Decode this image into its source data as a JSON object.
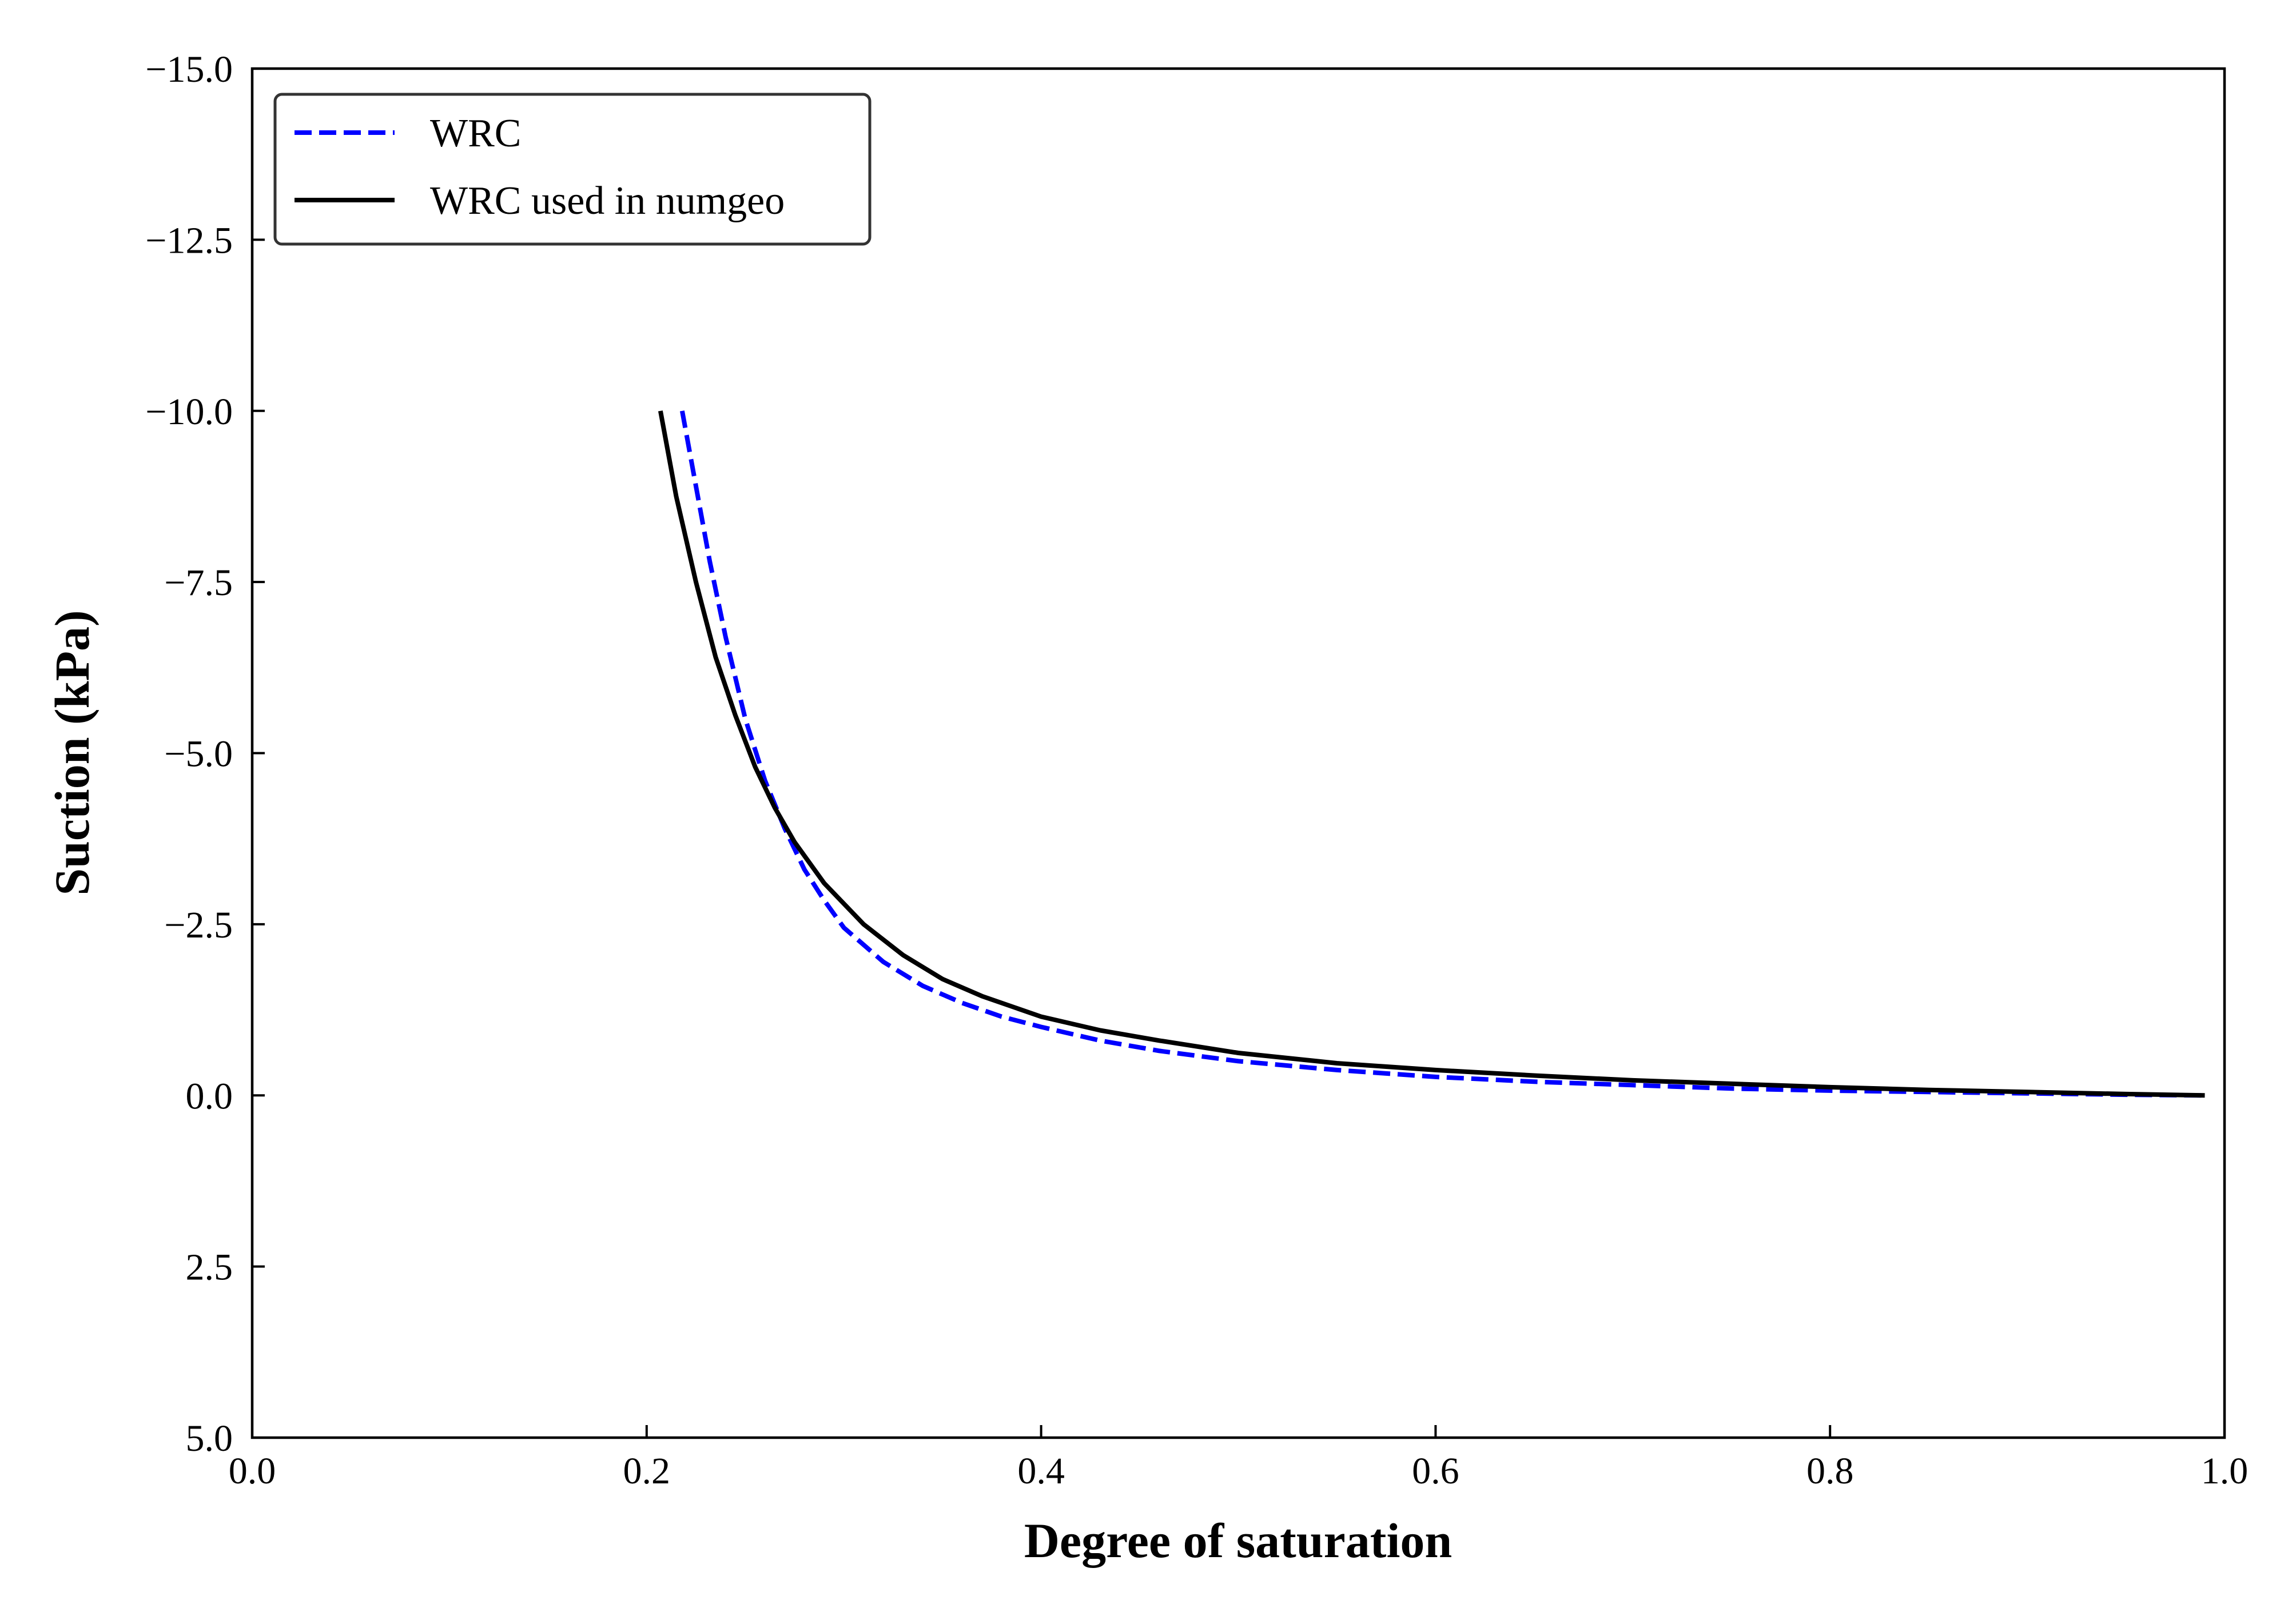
{
  "chart_data": {
    "type": "line",
    "title": "",
    "xlabel": "Degree of saturation",
    "ylabel": "Suction (kPa)",
    "xlim": [
      0.0,
      1.0
    ],
    "ylim": [
      -15.0,
      5.0
    ],
    "y_inverted": true,
    "grid": false,
    "legend_position": "top-left",
    "xticks": [
      {
        "value": 0.0,
        "label": "0.0"
      },
      {
        "value": 0.2,
        "label": "0.2"
      },
      {
        "value": 0.4,
        "label": "0.4"
      },
      {
        "value": 0.6,
        "label": "0.6"
      },
      {
        "value": 0.8,
        "label": "0.8"
      },
      {
        "value": 1.0,
        "label": "1.0"
      }
    ],
    "yticks": [
      {
        "value": -15.0,
        "label": "−15.0"
      },
      {
        "value": -12.5,
        "label": "−12.5"
      },
      {
        "value": -10.0,
        "label": "−10.0"
      },
      {
        "value": -7.5,
        "label": "−7.5"
      },
      {
        "value": -5.0,
        "label": "−5.0"
      },
      {
        "value": -2.5,
        "label": "−2.5"
      },
      {
        "value": 0.0,
        "label": "0.0"
      },
      {
        "value": 2.5,
        "label": "2.5"
      },
      {
        "value": 5.0,
        "label": "5.0"
      }
    ],
    "series": [
      {
        "name": "WRC",
        "color": "#0000ff",
        "style": "dashed",
        "x": [
          0.218,
          0.225,
          0.232,
          0.24,
          0.25,
          0.26,
          0.27,
          0.28,
          0.29,
          0.3,
          0.32,
          0.34,
          0.36,
          0.38,
          0.4,
          0.43,
          0.46,
          0.5,
          0.55,
          0.6,
          0.65,
          0.7,
          0.75,
          0.8,
          0.85,
          0.9,
          0.95,
          0.99
        ],
        "y": [
          -10.0,
          -8.9,
          -7.8,
          -6.7,
          -5.5,
          -4.6,
          -3.9,
          -3.3,
          -2.85,
          -2.45,
          -1.95,
          -1.6,
          -1.35,
          -1.15,
          -1.0,
          -0.8,
          -0.65,
          -0.5,
          -0.37,
          -0.27,
          -0.2,
          -0.15,
          -0.1,
          -0.07,
          -0.05,
          -0.03,
          -0.01,
          0.0
        ]
      },
      {
        "name": "WRC used in numgeo",
        "color": "#000000",
        "style": "solid",
        "x": [
          0.207,
          0.215,
          0.225,
          0.235,
          0.245,
          0.255,
          0.265,
          0.275,
          0.29,
          0.31,
          0.33,
          0.35,
          0.37,
          0.4,
          0.43,
          0.46,
          0.5,
          0.55,
          0.6,
          0.65,
          0.7,
          0.75,
          0.8,
          0.85,
          0.9,
          0.95,
          0.99
        ],
        "y": [
          -10.0,
          -8.75,
          -7.5,
          -6.4,
          -5.55,
          -4.8,
          -4.2,
          -3.7,
          -3.1,
          -2.5,
          -2.05,
          -1.7,
          -1.45,
          -1.15,
          -0.95,
          -0.8,
          -0.62,
          -0.47,
          -0.37,
          -0.29,
          -0.22,
          -0.17,
          -0.12,
          -0.08,
          -0.05,
          -0.02,
          0.0
        ]
      }
    ]
  }
}
